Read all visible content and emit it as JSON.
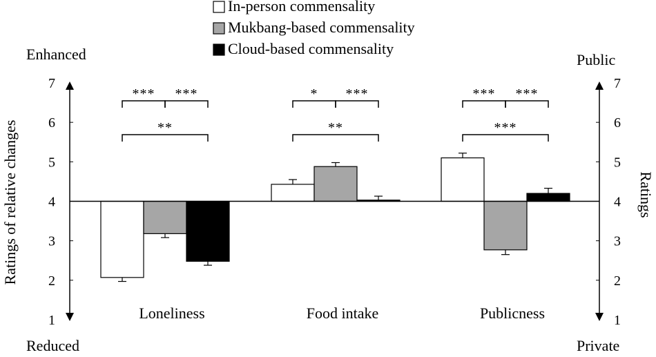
{
  "chart_data": {
    "type": "bar",
    "categories": [
      "Loneliness",
      "Food intake",
      "Publicness"
    ],
    "series": [
      {
        "name": "In-person commensality",
        "values": [
          2.07,
          4.43,
          5.1
        ],
        "errors": [
          0.1,
          0.12,
          0.12
        ],
        "color": "#ffffff"
      },
      {
        "name": "Mukbang-based commensality",
        "values": [
          3.18,
          4.88,
          2.77
        ],
        "errors": [
          0.1,
          0.1,
          0.12
        ],
        "color": "#a6a6a6"
      },
      {
        "name": "Cloud-based commensality",
        "values": [
          2.48,
          4.03,
          4.2
        ],
        "errors": [
          0.1,
          0.1,
          0.13
        ],
        "color": "#000000"
      }
    ],
    "baseline": 4,
    "ylim": [
      1,
      7
    ],
    "yticks": [
      "1",
      "2",
      "3",
      "4",
      "5",
      "6",
      "7"
    ],
    "ylabel_left": "Ratings of relative changes",
    "ylabel_right": "Ratings",
    "left_top_label": "Enhanced",
    "left_bottom_label": "Reduced",
    "right_top_label": "Public",
    "right_bottom_label": "Private",
    "legend_position": "top-center",
    "significance": [
      {
        "category": 0,
        "from": 0,
        "to": 1,
        "label": "***",
        "level": "upper"
      },
      {
        "category": 0,
        "from": 1,
        "to": 2,
        "label": "***",
        "level": "upper"
      },
      {
        "category": 0,
        "from": 0,
        "to": 2,
        "label": "**",
        "level": "lower"
      },
      {
        "category": 1,
        "from": 0,
        "to": 1,
        "label": "*",
        "level": "upper"
      },
      {
        "category": 1,
        "from": 1,
        "to": 2,
        "label": "***",
        "level": "upper"
      },
      {
        "category": 1,
        "from": 0,
        "to": 2,
        "label": "**",
        "level": "lower"
      },
      {
        "category": 2,
        "from": 0,
        "to": 1,
        "label": "***",
        "level": "upper"
      },
      {
        "category": 2,
        "from": 1,
        "to": 2,
        "label": "***",
        "level": "upper"
      },
      {
        "category": 2,
        "from": 0,
        "to": 2,
        "label": "***",
        "level": "lower"
      }
    ]
  }
}
